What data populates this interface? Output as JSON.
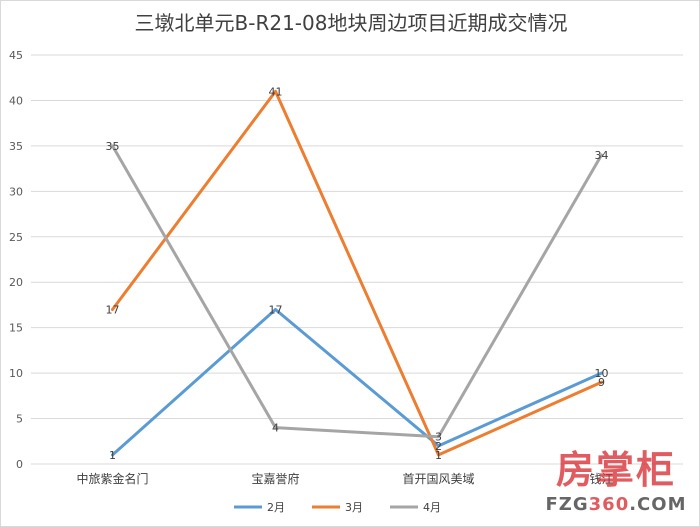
{
  "chart_data": {
    "type": "line",
    "title": "三墩北单元B-R21-08地块周边项目近期成交情况",
    "categories": [
      "中旅紫金名门",
      "宝嘉誉府",
      "首开国风美域",
      "钱江"
    ],
    "series": [
      {
        "name": "2月",
        "color": "#5b9bd5",
        "values": [
          1,
          17,
          2,
          10
        ]
      },
      {
        "name": "3月",
        "color": "#ed7d31",
        "values": [
          17,
          41,
          1,
          9
        ]
      },
      {
        "name": "4月",
        "color": "#a5a5a5",
        "values": [
          35,
          4,
          3,
          34
        ]
      }
    ],
    "ylim": [
      0,
      45
    ],
    "yticks": [
      0,
      5,
      10,
      15,
      20,
      25,
      30,
      35,
      40,
      45
    ],
    "grid": true,
    "legend": "bottom"
  },
  "watermark": {
    "cn": "房掌柜",
    "en_prefix": "FZG",
    "en_mid": "360",
    "en_suffix": ".COM"
  }
}
